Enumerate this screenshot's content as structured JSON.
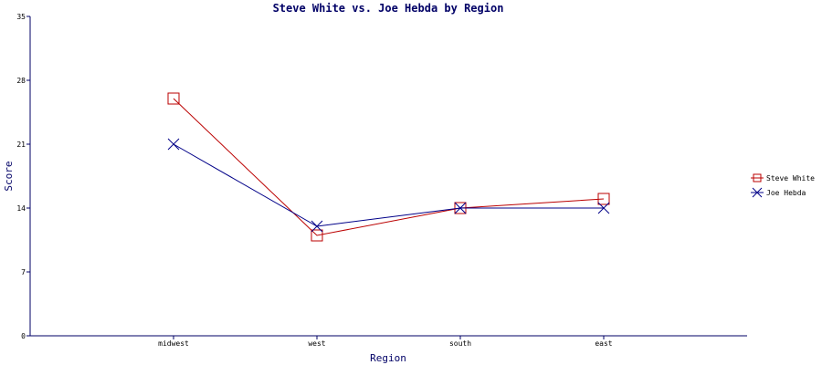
{
  "colors": {
    "axis": "#000066",
    "text": "#000066"
  },
  "chart_data": {
    "type": "line",
    "title": "Steve White vs. Joe Hebda by Region",
    "xlabel": "Region",
    "ylabel": "Score",
    "categories": [
      "midwest",
      "west",
      "south",
      "east"
    ],
    "ylim": [
      0,
      35
    ],
    "yticks": [
      "0",
      "7",
      "14",
      "21",
      "28",
      "35"
    ],
    "grid": false,
    "legend_position": "right",
    "series": [
      {
        "name": "Steve White",
        "color": "#bb0000",
        "marker": "square",
        "values": [
          26,
          11,
          14,
          15
        ]
      },
      {
        "name": "Joe Hebda",
        "color": "#000088",
        "marker": "x",
        "values": [
          21,
          12,
          14,
          14
        ]
      }
    ]
  }
}
